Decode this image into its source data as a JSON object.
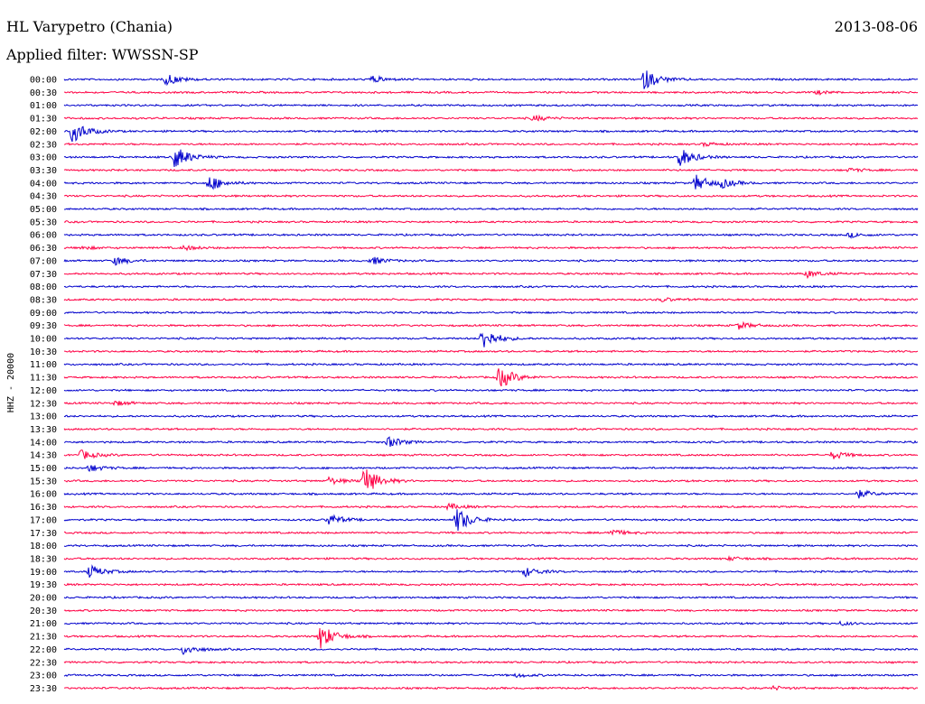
{
  "header": {
    "station": "HL Varypetro (Chania)",
    "date": "2013-08-06",
    "filter": "Applied filter: WWSSN-SP"
  },
  "chart_data": {
    "type": "line",
    "title": "HL Varypetro (Chania)",
    "subtitle": "Applied filter: WWSSN-SP",
    "date": "2013-08-06",
    "ylabel": "HHZ - 20000",
    "trace_colors": [
      "#0000cc",
      "#ff0044"
    ],
    "rows": [
      {
        "time": "00:00",
        "events": [
          [
            0.12,
            0.5
          ],
          [
            0.36,
            0.3
          ],
          [
            0.68,
            0.9
          ]
        ]
      },
      {
        "time": "00:30",
        "events": [
          [
            0.88,
            0.15
          ]
        ]
      },
      {
        "time": "01:00",
        "events": []
      },
      {
        "time": "01:30",
        "events": [
          [
            0.55,
            0.25
          ]
        ]
      },
      {
        "time": "02:00",
        "events": [
          [
            0.01,
            1.0
          ]
        ]
      },
      {
        "time": "02:30",
        "events": [
          [
            0.75,
            0.15
          ]
        ]
      },
      {
        "time": "03:00",
        "events": [
          [
            0.13,
            1.0
          ],
          [
            0.72,
            0.9
          ]
        ]
      },
      {
        "time": "03:30",
        "events": [
          [
            0.92,
            0.15
          ]
        ]
      },
      {
        "time": "04:00",
        "events": [
          [
            0.17,
            0.7
          ],
          [
            0.74,
            0.7
          ],
          [
            0.77,
            0.35
          ]
        ]
      },
      {
        "time": "04:30",
        "events": []
      },
      {
        "time": "05:00",
        "events": []
      },
      {
        "time": "05:30",
        "events": []
      },
      {
        "time": "06:00",
        "events": [
          [
            0.92,
            0.2
          ]
        ]
      },
      {
        "time": "06:30",
        "events": [
          [
            0.02,
            0.15
          ],
          [
            0.14,
            0.2
          ]
        ]
      },
      {
        "time": "07:00",
        "events": [
          [
            0.06,
            0.35
          ],
          [
            0.36,
            0.35
          ]
        ]
      },
      {
        "time": "07:30",
        "events": [
          [
            0.87,
            0.3
          ]
        ]
      },
      {
        "time": "08:00",
        "events": []
      },
      {
        "time": "08:30",
        "events": [
          [
            0.7,
            0.15
          ]
        ]
      },
      {
        "time": "09:00",
        "events": []
      },
      {
        "time": "09:30",
        "events": [
          [
            0.79,
            0.3
          ]
        ]
      },
      {
        "time": "10:00",
        "events": [
          [
            0.49,
            1.0
          ]
        ]
      },
      {
        "time": "10:30",
        "events": []
      },
      {
        "time": "11:00",
        "events": []
      },
      {
        "time": "11:30",
        "events": [
          [
            0.51,
            1.0
          ]
        ]
      },
      {
        "time": "12:00",
        "events": []
      },
      {
        "time": "12:30",
        "events": [
          [
            0.06,
            0.2
          ]
        ]
      },
      {
        "time": "13:00",
        "events": []
      },
      {
        "time": "13:30",
        "events": []
      },
      {
        "time": "14:00",
        "events": [
          [
            0.38,
            0.45
          ]
        ]
      },
      {
        "time": "14:30",
        "events": [
          [
            0.02,
            0.4
          ],
          [
            0.9,
            0.35
          ]
        ]
      },
      {
        "time": "15:00",
        "events": [
          [
            0.03,
            0.3
          ]
        ]
      },
      {
        "time": "15:30",
        "events": [
          [
            0.31,
            0.3
          ],
          [
            0.35,
            1.4
          ]
        ]
      },
      {
        "time": "16:00",
        "events": [
          [
            0.93,
            0.35
          ]
        ]
      },
      {
        "time": "16:30",
        "events": [
          [
            0.45,
            0.25
          ]
        ]
      },
      {
        "time": "17:00",
        "events": [
          [
            0.31,
            0.5
          ],
          [
            0.46,
            1.1
          ]
        ]
      },
      {
        "time": "17:30",
        "events": [
          [
            0.64,
            0.3
          ]
        ]
      },
      {
        "time": "18:00",
        "events": []
      },
      {
        "time": "18:30",
        "events": [
          [
            0.78,
            0.15
          ]
        ]
      },
      {
        "time": "19:00",
        "events": [
          [
            0.03,
            0.55
          ],
          [
            0.54,
            0.4
          ]
        ]
      },
      {
        "time": "19:30",
        "events": []
      },
      {
        "time": "20:00",
        "events": []
      },
      {
        "time": "20:30",
        "events": []
      },
      {
        "time": "21:00",
        "events": [
          [
            0.91,
            0.15
          ]
        ]
      },
      {
        "time": "21:30",
        "events": [
          [
            0.3,
            1.1
          ]
        ]
      },
      {
        "time": "22:00",
        "events": [
          [
            0.14,
            0.45
          ]
        ]
      },
      {
        "time": "22:30",
        "events": []
      },
      {
        "time": "23:00",
        "events": [
          [
            0.53,
            0.15
          ]
        ]
      },
      {
        "time": "23:30",
        "events": [
          [
            0.83,
            0.15
          ]
        ]
      }
    ]
  }
}
